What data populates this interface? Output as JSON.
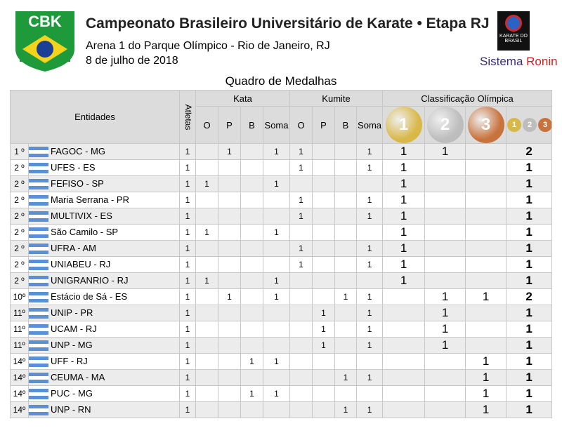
{
  "header": {
    "logo": "CBK",
    "title": "Campeonato Brasileiro Universitário de Karate • Etapa RJ",
    "venue": "Arena 1 do Parque Olímpico - Rio de Janeiro, RJ",
    "date": "8 de julho de 2018",
    "badge": "KARATE DO BRASIL",
    "brand": [
      "Sistema",
      "Ronin"
    ]
  },
  "table": {
    "title": "Quadro de Medalhas",
    "entities": "Entidades",
    "athletes": "Atletas",
    "groups": [
      "Kata",
      "Kumite",
      "Classificação Olímpica"
    ],
    "kata_columns": [
      "O",
      "P",
      "B",
      "Soma"
    ],
    "kumite_columns": [
      "O",
      "P",
      "B",
      "Soma"
    ],
    "medals": [
      1,
      2,
      3
    ],
    "rows": [
      [
        "1 º",
        "FAGOC - MG",
        1,
        null,
        1,
        null,
        1,
        1,
        null,
        null,
        1,
        1,
        1,
        null,
        2
      ],
      [
        "2 º",
        "UFES - ES",
        1,
        null,
        null,
        null,
        null,
        1,
        null,
        null,
        1,
        1,
        null,
        null,
        1
      ],
      [
        "2 º",
        "FEFISO - SP",
        1,
        1,
        null,
        null,
        1,
        null,
        null,
        null,
        null,
        1,
        null,
        null,
        1
      ],
      [
        "2 º",
        "Maria Serrana - PR",
        1,
        null,
        null,
        null,
        null,
        1,
        null,
        null,
        1,
        1,
        null,
        null,
        1
      ],
      [
        "2 º",
        "MULTIVIX - ES",
        1,
        null,
        null,
        null,
        null,
        1,
        null,
        null,
        1,
        1,
        null,
        null,
        1
      ],
      [
        "2 º",
        "São Camilo - SP",
        1,
        1,
        null,
        null,
        1,
        null,
        null,
        null,
        null,
        1,
        null,
        null,
        1
      ],
      [
        "2 º",
        "UFRA - AM",
        1,
        null,
        null,
        null,
        null,
        1,
        null,
        null,
        1,
        1,
        null,
        null,
        1
      ],
      [
        "2 º",
        "UNIABEU - RJ",
        1,
        null,
        null,
        null,
        null,
        1,
        null,
        null,
        1,
        1,
        null,
        null,
        1
      ],
      [
        "2 º",
        "UNIGRANRIO - RJ",
        1,
        1,
        null,
        null,
        1,
        null,
        null,
        null,
        null,
        1,
        null,
        null,
        1
      ],
      [
        "10º",
        "Estácio de Sá - ES",
        1,
        null,
        1,
        null,
        1,
        null,
        null,
        1,
        1,
        null,
        1,
        1,
        2
      ],
      [
        "11º",
        "UNIP - PR",
        1,
        null,
        null,
        null,
        null,
        null,
        1,
        null,
        1,
        null,
        1,
        null,
        1
      ],
      [
        "11º",
        "UCAM - RJ",
        1,
        null,
        null,
        null,
        null,
        null,
        1,
        null,
        1,
        null,
        1,
        null,
        1
      ],
      [
        "11º",
        "UNP - MG",
        1,
        null,
        null,
        null,
        null,
        null,
        1,
        null,
        1,
        null,
        1,
        null,
        1
      ],
      [
        "14º",
        "UFF - RJ",
        1,
        null,
        null,
        1,
        1,
        null,
        null,
        null,
        null,
        null,
        null,
        1,
        1
      ],
      [
        "14º",
        "CEUMA - MA",
        1,
        null,
        null,
        null,
        null,
        null,
        null,
        1,
        1,
        null,
        null,
        1,
        1
      ],
      [
        "14º",
        "PUC - MG",
        1,
        null,
        null,
        1,
        1,
        null,
        null,
        null,
        null,
        null,
        null,
        1,
        1
      ],
      [
        "14º",
        "UNP - RN",
        1,
        null,
        null,
        null,
        null,
        null,
        null,
        1,
        1,
        null,
        null,
        1,
        1
      ]
    ]
  }
}
